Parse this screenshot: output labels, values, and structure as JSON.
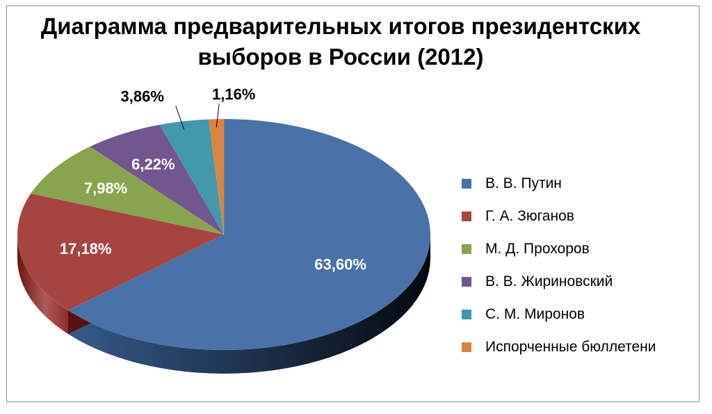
{
  "chart_data": {
    "type": "pie",
    "title_lines": [
      "Диаграмма предварительных итогов президентских",
      "выборов в России (2012)"
    ],
    "slices": [
      {
        "label": "В. В. Путин",
        "value": 63.6,
        "value_label": "63,60%",
        "color": "#4a72a8",
        "dark": "#0e1a2c"
      },
      {
        "label": "Г. А. Зюганов",
        "value": 17.18,
        "value_label": "17,18%",
        "color": "#a64442",
        "dark": "#5a1010"
      },
      {
        "label": "М. Д. Прохоров",
        "value": 7.98,
        "value_label": "7,98%",
        "color": "#88a44e",
        "dark": "#4a5c22"
      },
      {
        "label": "В. В. Жириновский",
        "value": 6.22,
        "value_label": "6,22%",
        "color": "#71568f",
        "dark": "#3a2a52"
      },
      {
        "label": "С. М. Миронов",
        "value": 3.86,
        "value_label": "3,86%",
        "color": "#4299ad",
        "dark": "#1e5a68"
      },
      {
        "label": "Испорченные бюллетени",
        "value": 1.16,
        "value_label": "1,16%",
        "color": "#db843d",
        "dark": "#8a4a18"
      }
    ],
    "legend_position": "right"
  }
}
